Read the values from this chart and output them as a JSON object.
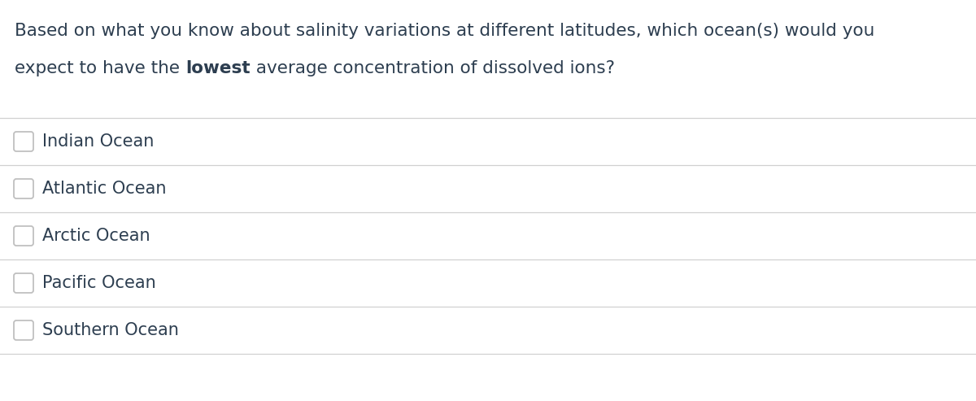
{
  "question_line1": "Based on what you know about salinity variations at different latitudes, which ocean(s) would you",
  "question_line2_pre": "expect to have the ",
  "question_line2_bold": "lowest",
  "question_line2_post": " average concentration of dissolved ions?",
  "options": [
    "Indian Ocean",
    "Atlantic Ocean",
    "Arctic Ocean",
    "Pacific Ocean",
    "Southern Ocean"
  ],
  "bg_color": "#ffffff",
  "text_color": "#2d3e50",
  "line_color": "#d0d0d0",
  "checkbox_edge_color": "#c0c0c0",
  "question_fontsize": 15.5,
  "option_fontsize": 15,
  "fig_width": 12.0,
  "fig_height": 4.93,
  "dpi": 100
}
